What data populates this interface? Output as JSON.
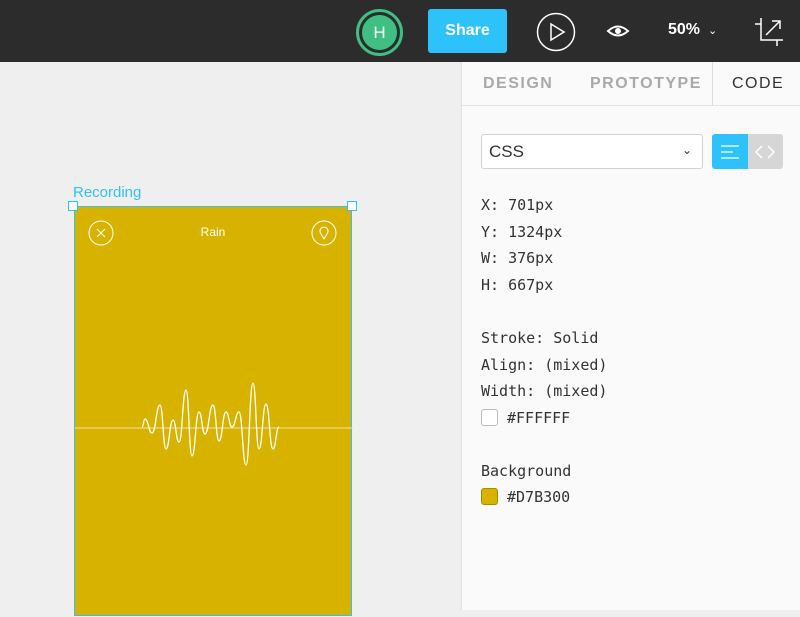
{
  "topbar": {
    "avatar_initial": "H",
    "share_label": "Share",
    "zoom_level": "50%"
  },
  "panel": {
    "tabs": [
      {
        "label": "DESIGN"
      },
      {
        "label": "PROTOTYPE"
      },
      {
        "label": "CODE",
        "active": true
      }
    ],
    "language_select": "CSS",
    "props": {
      "x": "X: 701px",
      "y": "Y: 1324px",
      "w": "W: 376px",
      "h": "H: 667px",
      "stroke": "Stroke: Solid",
      "align": "Align: (mixed)",
      "width": "Width: (mixed)",
      "stroke_color": "#FFFFFF",
      "background_label": "Background",
      "background_color": "#D7B300"
    }
  },
  "canvas": {
    "frame_name": "Recording",
    "screen_title": "Rain"
  },
  "colors": {
    "accent": "#2ec2fb",
    "avatar": "#3fbf84",
    "frame_bg": "#D7B300"
  }
}
